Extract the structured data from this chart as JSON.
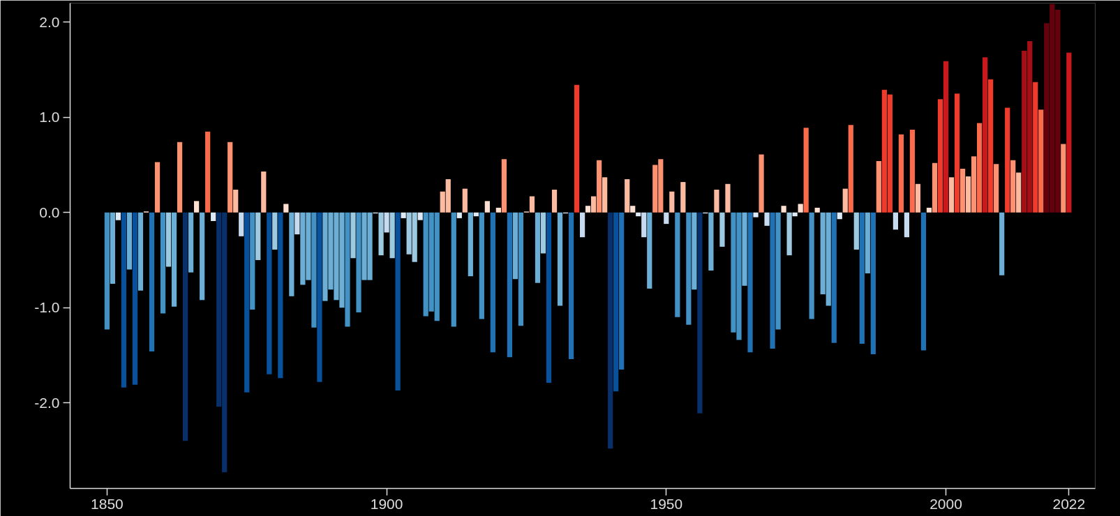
{
  "chart_data": {
    "type": "bar",
    "x": [
      1850,
      1851,
      1852,
      1853,
      1854,
      1855,
      1856,
      1857,
      1858,
      1859,
      1860,
      1861,
      1862,
      1863,
      1864,
      1865,
      1866,
      1867,
      1868,
      1869,
      1870,
      1871,
      1872,
      1873,
      1874,
      1875,
      1876,
      1877,
      1878,
      1879,
      1880,
      1881,
      1882,
      1883,
      1884,
      1885,
      1886,
      1887,
      1888,
      1889,
      1890,
      1891,
      1892,
      1893,
      1894,
      1895,
      1896,
      1897,
      1898,
      1899,
      1900,
      1901,
      1902,
      1903,
      1904,
      1905,
      1906,
      1907,
      1908,
      1909,
      1910,
      1911,
      1912,
      1913,
      1914,
      1915,
      1916,
      1917,
      1918,
      1919,
      1920,
      1921,
      1922,
      1923,
      1924,
      1925,
      1926,
      1927,
      1928,
      1929,
      1930,
      1931,
      1932,
      1933,
      1934,
      1935,
      1936,
      1937,
      1938,
      1939,
      1940,
      1941,
      1942,
      1943,
      1944,
      1945,
      1946,
      1947,
      1948,
      1949,
      1950,
      1951,
      1952,
      1953,
      1954,
      1955,
      1956,
      1957,
      1958,
      1959,
      1960,
      1961,
      1962,
      1963,
      1964,
      1965,
      1966,
      1967,
      1968,
      1969,
      1970,
      1971,
      1972,
      1973,
      1974,
      1975,
      1976,
      1977,
      1978,
      1979,
      1980,
      1981,
      1982,
      1983,
      1984,
      1985,
      1986,
      1987,
      1988,
      1989,
      1990,
      1991,
      1992,
      1993,
      1994,
      1995,
      1996,
      1997,
      1998,
      1999,
      2000,
      2001,
      2002,
      2003,
      2004,
      2005,
      2006,
      2007,
      2008,
      2009,
      2010,
      2011,
      2012,
      2013,
      2014,
      2015,
      2016,
      2017,
      2018,
      2019,
      2020,
      2021,
      2022
    ],
    "values": [
      -1.23,
      -0.75,
      -0.08,
      -1.84,
      -0.6,
      -1.81,
      -0.82,
      0.01,
      -1.46,
      0.53,
      -1.06,
      -0.57,
      -0.99,
      0.74,
      -2.4,
      -0.63,
      0.12,
      -0.92,
      0.85,
      -0.09,
      -2.04,
      -2.73,
      0.74,
      0.24,
      -0.25,
      -1.89,
      -1.02,
      -0.5,
      0.43,
      -1.7,
      -0.39,
      -1.74,
      0.09,
      -0.88,
      -0.23,
      -0.76,
      -0.71,
      -1.21,
      -1.78,
      -0.93,
      -0.81,
      -0.92,
      -1.0,
      -1.2,
      -0.48,
      -1.05,
      -0.71,
      -0.71,
      -0.01,
      -0.45,
      -0.21,
      -0.48,
      -1.87,
      -0.06,
      -0.44,
      -0.52,
      -0.08,
      -1.09,
      -1.04,
      -1.14,
      0.22,
      0.35,
      -1.2,
      -0.06,
      0.25,
      -0.67,
      -0.04,
      -1.12,
      0.12,
      -1.47,
      0.05,
      0.56,
      -1.52,
      -0.7,
      -1.19,
      0.01,
      0.17,
      -0.74,
      -0.43,
      -1.79,
      0.24,
      -0.98,
      -0.01,
      -1.54,
      1.34,
      -0.26,
      0.07,
      0.17,
      0.55,
      0.37,
      -2.48,
      -1.88,
      -1.65,
      0.35,
      0.07,
      -0.04,
      -0.26,
      -0.8,
      0.5,
      0.56,
      -0.12,
      0.22,
      -1.1,
      0.32,
      -1.18,
      -0.81,
      -2.11,
      -0.01,
      -0.61,
      0.24,
      -0.36,
      0.3,
      -1.26,
      -1.34,
      -0.77,
      -1.47,
      -0.05,
      0.61,
      -0.14,
      -1.43,
      -1.23,
      0.07,
      -0.45,
      -0.04,
      0.09,
      0.89,
      -1.12,
      0.05,
      -0.86,
      -0.98,
      -1.37,
      -0.07,
      0.25,
      0.92,
      -0.39,
      -1.38,
      -0.64,
      -1.49,
      0.54,
      1.29,
      1.24,
      -0.18,
      0.82,
      -0.26,
      0.87,
      0.3,
      -1.45,
      0.05,
      0.52,
      1.19,
      1.59,
      0.37,
      1.25,
      0.46,
      0.38,
      0.59,
      0.94,
      1.63,
      1.4,
      0.51,
      -0.66,
      1.1,
      0.55,
      0.42,
      1.7,
      1.8,
      1.37,
      1.08,
      1.99,
      2.19,
      2.13,
      0.72,
      1.68
    ],
    "colors": [
      "#4292c6",
      "#6baed6",
      "#deebf7",
      "#08519c",
      "#6baed6",
      "#08519c",
      "#6baed6",
      "#fee0d2",
      "#2171b5",
      "#fc9272",
      "#4292c6",
      "#9ecae1",
      "#6baed6",
      "#fc9272",
      "#08306b",
      "#6baed6",
      "#fee0d2",
      "#6baed6",
      "#fb6a4a",
      "#deebf7",
      "#08306b",
      "#08306b",
      "#fc9272",
      "#fcbba1",
      "#c6dbef",
      "#08519c",
      "#4292c6",
      "#9ecae1",
      "#fcbba1",
      "#08519c",
      "#9ecae1",
      "#08519c",
      "#fee0d2",
      "#6baed6",
      "#c6dbef",
      "#6baed6",
      "#6baed6",
      "#4292c6",
      "#08519c",
      "#6baed6",
      "#6baed6",
      "#6baed6",
      "#6baed6",
      "#4292c6",
      "#9ecae1",
      "#4292c6",
      "#6baed6",
      "#6baed6",
      "#deebf7",
      "#9ecae1",
      "#c6dbef",
      "#9ecae1",
      "#08519c",
      "#deebf7",
      "#9ecae1",
      "#9ecae1",
      "#deebf7",
      "#4292c6",
      "#4292c6",
      "#4292c6",
      "#fcbba1",
      "#fcbba1",
      "#4292c6",
      "#deebf7",
      "#fcbba1",
      "#6baed6",
      "#deebf7",
      "#4292c6",
      "#fee0d2",
      "#2171b5",
      "#fee0d2",
      "#fc9272",
      "#2171b5",
      "#6baed6",
      "#4292c6",
      "#fee0d2",
      "#fcbba1",
      "#6baed6",
      "#9ecae1",
      "#08519c",
      "#fcbba1",
      "#6baed6",
      "#deebf7",
      "#2171b5",
      "#ef3b2c",
      "#c6dbef",
      "#fee0d2",
      "#fcbba1",
      "#fc9272",
      "#fcbba1",
      "#08306b",
      "#08519c",
      "#2171b5",
      "#fcbba1",
      "#fee0d2",
      "#deebf7",
      "#c6dbef",
      "#6baed6",
      "#fc9272",
      "#fc9272",
      "#c6dbef",
      "#fcbba1",
      "#4292c6",
      "#fcbba1",
      "#4292c6",
      "#6baed6",
      "#08306b",
      "#deebf7",
      "#6baed6",
      "#fcbba1",
      "#9ecae1",
      "#fcbba1",
      "#4292c6",
      "#4292c6",
      "#6baed6",
      "#2171b5",
      "#deebf7",
      "#fc9272",
      "#c6dbef",
      "#2171b5",
      "#4292c6",
      "#fee0d2",
      "#9ecae1",
      "#deebf7",
      "#fee0d2",
      "#fb6a4a",
      "#4292c6",
      "#fee0d2",
      "#6baed6",
      "#6baed6",
      "#2171b5",
      "#deebf7",
      "#fcbba1",
      "#fb6a4a",
      "#9ecae1",
      "#2171b5",
      "#6baed6",
      "#2171b5",
      "#fc9272",
      "#ef3b2c",
      "#ef3b2c",
      "#c6dbef",
      "#fb6a4a",
      "#c6dbef",
      "#fb6a4a",
      "#fcbba1",
      "#2171b5",
      "#fee0d2",
      "#fc9272",
      "#ef3b2c",
      "#cb181d",
      "#fcbba1",
      "#ef3b2c",
      "#fc9272",
      "#fcbba1",
      "#fc9272",
      "#fb6a4a",
      "#cb181d",
      "#ef3b2c",
      "#fc9272",
      "#6baed6",
      "#ef3b2c",
      "#fc9272",
      "#fcbba1",
      "#a50f15",
      "#a50f15",
      "#ef3b2c",
      "#fb6a4a",
      "#67000d",
      "#67000d",
      "#67000d",
      "#fc9272",
      "#cb181d"
    ],
    "xlim": [
      1843.4,
      2026.7
    ],
    "ylim": [
      -2.9,
      2.2
    ],
    "xticks": [
      1850,
      1900,
      1950,
      2000,
      2022
    ],
    "yticks": [
      {
        "value": -2,
        "label": "-2.0"
      },
      {
        "value": -1,
        "label": "-1.0"
      },
      {
        "value": 0,
        "label": "0.0"
      },
      {
        "value": 1,
        "label": "1.0"
      },
      {
        "value": 2,
        "label": "2.0"
      }
    ]
  }
}
